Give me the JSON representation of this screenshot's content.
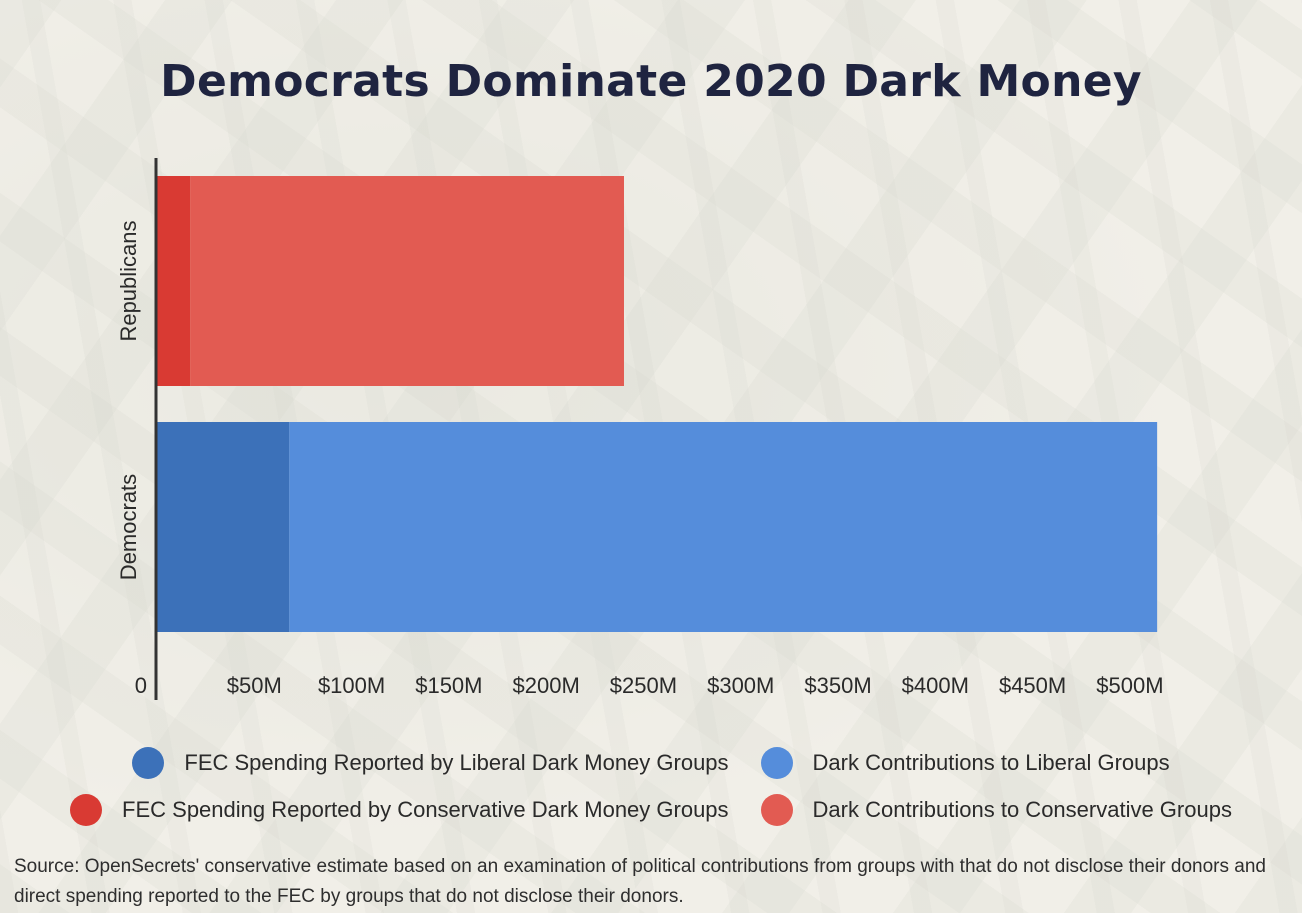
{
  "chart_data": {
    "type": "bar",
    "orientation": "horizontal",
    "stacked": true,
    "title": "Democrats Dominate 2020 Dark Money",
    "categories": [
      "Republicans",
      "Democrats"
    ],
    "series": [
      {
        "name": "FEC Spending Reported by Liberal Dark Money Groups",
        "color": "#3c71b9",
        "values": [
          0,
          68
        ]
      },
      {
        "name": "Dark Contributions to Liberal Groups",
        "color": "#558ddb",
        "values": [
          0,
          446
        ]
      },
      {
        "name": "FEC Spending Reported by Conservative Dark Money Groups",
        "color": "#d93a33",
        "values": [
          17,
          0
        ]
      },
      {
        "name": "Dark Contributions to Conservative Groups",
        "color": "#e25b52",
        "values": [
          223,
          0
        ]
      }
    ],
    "xlim": [
      0,
      535
    ],
    "ticks": [
      0,
      50,
      100,
      150,
      200,
      250,
      300,
      350,
      400,
      450,
      500
    ],
    "tick_labels": [
      "0",
      "$50M",
      "$100M",
      "$150M",
      "$200M",
      "$250M",
      "$300M",
      "$350M",
      "$400M",
      "$450M",
      "$500M"
    ],
    "xlabel": "",
    "ylabel": "",
    "grid": false,
    "legend_position": "bottom"
  },
  "source": "Source: OpenSecrets' conservative estimate based on an examination of political contributions from groups with that do not disclose their donors and direct spending reported to the FEC by groups that do not disclose their donors."
}
